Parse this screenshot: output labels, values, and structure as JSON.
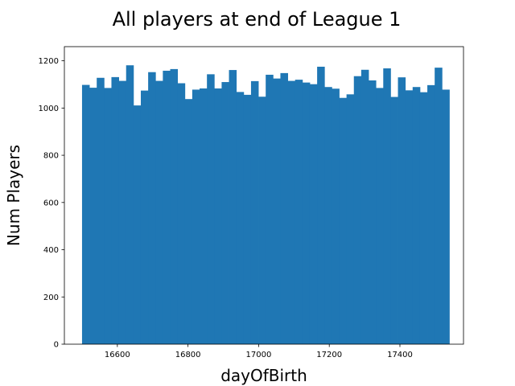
{
  "chart_data": {
    "type": "bar",
    "title": "All players at end of League 1",
    "xlabel": "dayOfBirth",
    "ylabel": "Num Players",
    "xlim": [
      16450,
      17580
    ],
    "ylim": [
      0,
      1260
    ],
    "x_ticks": [
      16600,
      16800,
      17000,
      17200,
      17400
    ],
    "y_ticks": [
      0,
      200,
      400,
      600,
      800,
      1000,
      1200
    ],
    "bin_start": 16500,
    "bin_end": 17540,
    "bar_color": "#1f77b4",
    "grid": false,
    "values": [
      1098,
      1086,
      1128,
      1085,
      1131,
      1115,
      1181,
      1011,
      1074,
      1152,
      1115,
      1158,
      1165,
      1105,
      1038,
      1078,
      1083,
      1143,
      1083,
      1110,
      1161,
      1068,
      1056,
      1114,
      1048,
      1141,
      1125,
      1148,
      1115,
      1120,
      1108,
      1101,
      1175,
      1089,
      1082,
      1043,
      1058,
      1135,
      1162,
      1117,
      1085,
      1168,
      1047,
      1130,
      1075,
      1089,
      1067,
      1097,
      1171,
      1078
    ]
  }
}
